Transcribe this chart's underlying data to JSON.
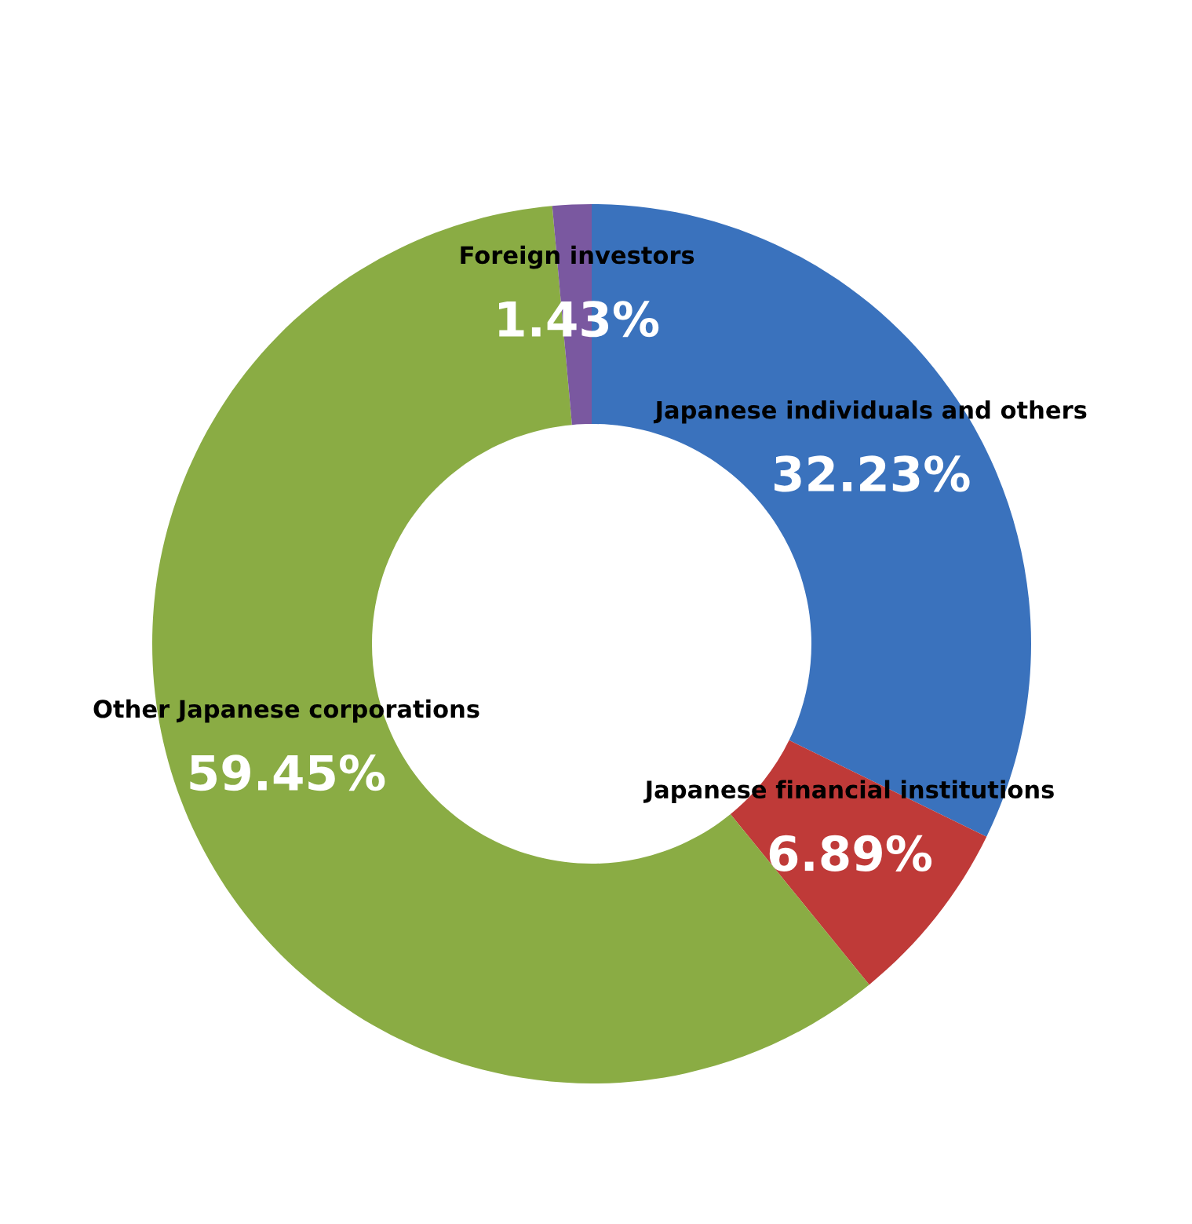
{
  "chart_data": {
    "type": "donut",
    "categories": [
      "Japanese individuals and others",
      "Japanese financial institutions",
      "Other Japanese corporations",
      "Foreign investors"
    ],
    "values": [
      32.23,
      6.89,
      59.45,
      1.43
    ],
    "value_labels": [
      "32.23%",
      "6.89%",
      "59.45%",
      "1.43%"
    ],
    "colors": [
      "#3a72bd",
      "#bf3a38",
      "#8aac44",
      "#7a58a0"
    ],
    "legend": false
  }
}
